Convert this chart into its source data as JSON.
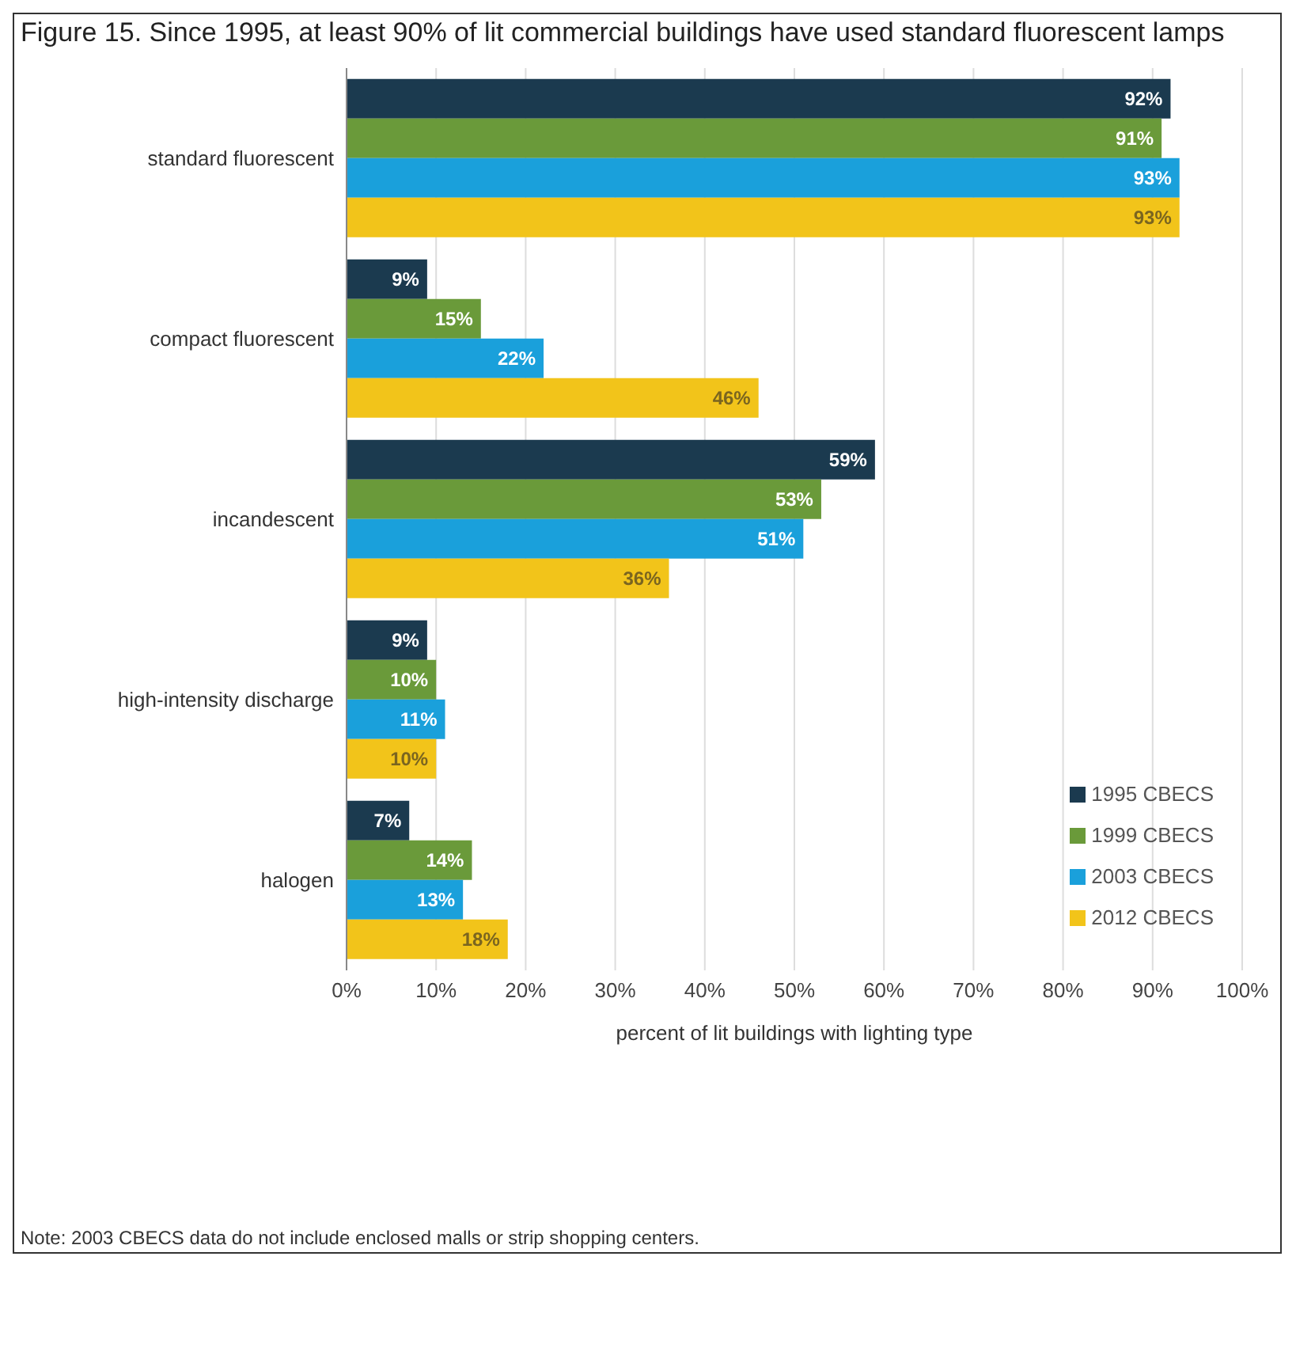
{
  "chart_data": {
    "type": "bar",
    "orientation": "horizontal",
    "title": "Figure 15. Since 1995, at least 90% of lit commercial buildings have used standard fluorescent lamps",
    "xlabel": "percent of lit buildings with lighting type",
    "categories": [
      "standard fluorescent",
      "compact fluorescent",
      "incandescent",
      "high-intensity discharge",
      "halogen"
    ],
    "series": [
      {
        "name": "1995 CBECS",
        "color": "#1b3a4f",
        "values": [
          92,
          9,
          59,
          9,
          7
        ],
        "value_labels": [
          "92%",
          "9%",
          "59%",
          "9%",
          "7%"
        ]
      },
      {
        "name": "1999 CBECS",
        "color": "#6a9a3a",
        "values": [
          91,
          15,
          53,
          10,
          14
        ],
        "value_labels": [
          "91%",
          "15%",
          "53%",
          "10%",
          "14%"
        ]
      },
      {
        "name": "2003 CBECS",
        "color": "#1aa0db",
        "values": [
          93,
          22,
          51,
          11,
          13
        ],
        "value_labels": [
          "93%",
          "22%",
          "51%",
          "11%",
          "13%"
        ]
      },
      {
        "name": "2012 CBECS",
        "color": "#f2c41a",
        "values": [
          93,
          46,
          36,
          10,
          18
        ],
        "value_labels": [
          "93%",
          "46%",
          "36%",
          "10%",
          "18%"
        ]
      }
    ],
    "xlim": [
      0,
      100
    ],
    "xticks": [
      {
        "value": 0,
        "label": "0%"
      },
      {
        "value": 10,
        "label": "10%"
      },
      {
        "value": 20,
        "label": "20%"
      },
      {
        "value": 30,
        "label": "30%"
      },
      {
        "value": 40,
        "label": "40%"
      },
      {
        "value": 50,
        "label": "50%"
      },
      {
        "value": 60,
        "label": "60%"
      },
      {
        "value": 70,
        "label": "70%"
      },
      {
        "value": 80,
        "label": "80%"
      },
      {
        "value": 90,
        "label": "90%"
      },
      {
        "value": 100,
        "label": "100%"
      }
    ],
    "grid": "x",
    "legend": "bottom right",
    "annotations": [
      "Note: 2003 CBECS data do not include enclosed malls or strip shopping centers."
    ]
  }
}
